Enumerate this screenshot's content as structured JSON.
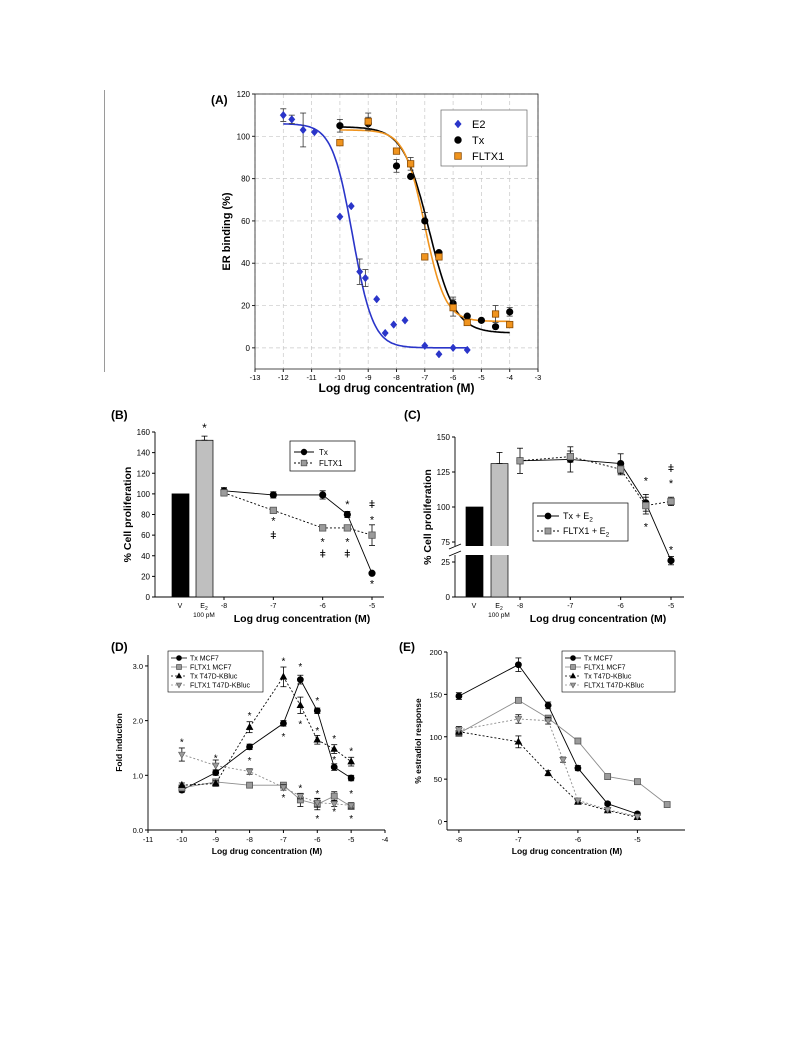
{
  "chart_data": [
    {
      "panel": "(A)",
      "type": "scatter",
      "xlabel": "Log drug concentration (M)",
      "ylabel": "ER binding (%)",
      "xlim": [
        -13,
        -3
      ],
      "ylim": [
        -10,
        120
      ],
      "xticks": [
        -13,
        -12,
        -11,
        -10,
        -9,
        -8,
        -7,
        -6,
        -5,
        -4,
        -3
      ],
      "yticks": [
        0,
        20,
        40,
        60,
        80,
        100,
        120
      ],
      "grid": true,
      "legend_position": "top-right",
      "series": [
        {
          "name": "E2",
          "color": "#2a35c9",
          "marker": "diamond",
          "x": [
            -12,
            -11.7,
            -11.3,
            -10.9,
            -10,
            -9.6,
            -9.3,
            -9.1,
            -8.7,
            -8.4,
            -8.1,
            -7.7,
            -7,
            -6.5,
            -6,
            -5.5
          ],
          "y": [
            110,
            108,
            103,
            102,
            62,
            67,
            36,
            33,
            23,
            7,
            11,
            13,
            1,
            -3,
            0,
            -1
          ],
          "err": [
            3,
            2,
            8,
            0,
            0,
            0,
            6,
            4,
            0,
            0,
            0,
            0,
            0,
            0,
            0,
            0
          ],
          "fit": {
            "top": 106,
            "bottom": 0,
            "logEC50": -9.55,
            "slope": 1.2,
            "from": -12,
            "to": -5.5
          }
        },
        {
          "name": "Tx",
          "color": "#000000",
          "marker": "circle",
          "x": [
            -10,
            -9,
            -8,
            -7.5,
            -7,
            -6.5,
            -6,
            -5.5,
            -5,
            -4.5,
            -4
          ],
          "y": [
            105,
            106,
            86,
            81,
            60,
            45,
            21,
            15,
            13,
            10,
            17
          ],
          "err": [
            3,
            3,
            3,
            0,
            4,
            0,
            3,
            0,
            0,
            0,
            2
          ],
          "fit": {
            "top": 104.5,
            "bottom": 7,
            "logEC50": -6.85,
            "slope": 0.95,
            "from": -10,
            "to": -4
          }
        },
        {
          "name": "FLTX1",
          "color": "#f0941e",
          "marker": "square",
          "x": [
            -10,
            -9,
            -8,
            -7.5,
            -7,
            -6.5,
            -6,
            -5.5,
            -4.5,
            -4
          ],
          "y": [
            97,
            107,
            93,
            87,
            43,
            43,
            19,
            12,
            16,
            11
          ],
          "err": [
            0,
            4,
            0,
            3,
            0,
            0,
            4,
            0,
            4,
            0
          ],
          "fit": {
            "top": 103,
            "bottom": 12.5,
            "logEC50": -7.0,
            "slope": 1.2,
            "from": -10,
            "to": -4
          }
        }
      ]
    },
    {
      "panel": "(B)",
      "type": "bar+line",
      "xlabel": "Log drug concentration (M)",
      "ylabel": "% Cell proliferation",
      "ylim": [
        0,
        160
      ],
      "yticks": [
        0,
        20,
        40,
        60,
        80,
        100,
        120,
        140,
        160
      ],
      "xticks": [
        "-8",
        "-7",
        "-6",
        "-5"
      ],
      "categories": [
        "V",
        "E2"
      ],
      "category_sub": "100 pM",
      "bars": [
        {
          "label": "V",
          "value": 100,
          "color": "#000000"
        },
        {
          "label": "E2",
          "value": 152,
          "color": "#bfbfbf",
          "err": 4,
          "star": "*"
        }
      ],
      "legend_position": "top-right",
      "series": [
        {
          "name": "Tx",
          "marker": "circle",
          "color": "#000000",
          "dash": false,
          "x": [
            -8,
            -7,
            -6,
            -5.5,
            -5
          ],
          "y": [
            103,
            99,
            99,
            80,
            23
          ],
          "err": [
            3,
            3,
            4,
            3,
            0
          ]
        },
        {
          "name": "FLTX1",
          "marker": "square",
          "color": "#8c8c8c",
          "dash": true,
          "x": [
            -8,
            -7,
            -6,
            -5.5,
            -5
          ],
          "y": [
            101,
            84,
            67,
            67,
            60
          ],
          "err": [
            3,
            2,
            3,
            0,
            10
          ]
        }
      ],
      "annotations": [
        {
          "x": -7,
          "y": 74,
          "text": "*"
        },
        {
          "x": -7,
          "y": 60,
          "text": "ǂ"
        },
        {
          "x": -6,
          "y": 54,
          "text": "*"
        },
        {
          "x": -6,
          "y": 42,
          "text": "ǂ"
        },
        {
          "x": -5.5,
          "y": 90,
          "text": "*"
        },
        {
          "x": -5.5,
          "y": 54,
          "text": "*"
        },
        {
          "x": -5.5,
          "y": 42,
          "text": "ǂ"
        },
        {
          "x": -5,
          "y": 90,
          "text": "ǂ"
        },
        {
          "x": -5,
          "y": 75,
          "text": "*"
        },
        {
          "x": -5,
          "y": 13,
          "text": "*"
        }
      ]
    },
    {
      "panel": "(C)",
      "type": "bar+line",
      "xlabel": "Log drug concentration (M)",
      "ylabel": "% Cell proliferation",
      "yticks_upper": [
        75,
        100,
        125,
        150
      ],
      "yticks_lower": [
        0,
        25
      ],
      "broken_axis": true,
      "xticks": [
        "-8",
        "-7",
        "-6",
        "-5"
      ],
      "categories": [
        "V",
        "E2"
      ],
      "category_sub": "100 pM",
      "bars": [
        {
          "label": "V",
          "value": 100,
          "color": "#000000",
          "star": "*"
        },
        {
          "label": "E2",
          "value": 131,
          "color": "#bfbfbf",
          "err": 8
        }
      ],
      "legend_position": "middle-right",
      "series": [
        {
          "name": "Tx + E2",
          "marker": "circle",
          "color": "#000000",
          "dash": false,
          "x": [
            -8,
            -7,
            -6,
            -5.5,
            -5
          ],
          "y": [
            133,
            134,
            131,
            103,
            26
          ],
          "err": [
            9,
            9,
            7,
            6,
            3
          ]
        },
        {
          "name": "FLTX1 + E2",
          "marker": "square",
          "color": "#8c8c8c",
          "dash": true,
          "x": [
            -8,
            -7,
            -6,
            -5.5,
            -5
          ],
          "y": [
            133,
            136,
            127,
            101,
            104
          ],
          "err": [
            0,
            4,
            4,
            6,
            3
          ]
        }
      ],
      "annotations": [
        {
          "x": -5.5,
          "y": 119,
          "text": "*"
        },
        {
          "x": -5.5,
          "y": 86,
          "text": "*"
        },
        {
          "x": -5,
          "y": 128,
          "text": "ǂ"
        },
        {
          "x": -5,
          "y": 117,
          "text": "*"
        },
        {
          "x": -5,
          "y": 34,
          "text": "*"
        }
      ]
    },
    {
      "panel": "(D)",
      "type": "line",
      "xlabel": "Log drug concentration (M)",
      "ylabel": "Fold induction",
      "xlim": [
        -11,
        -4
      ],
      "ylim": [
        0,
        3.2
      ],
      "xticks": [
        -11,
        -10,
        -9,
        -8,
        -7,
        -6,
        -5,
        -4
      ],
      "yticks": [
        0.0,
        1.0,
        2.0,
        3.0
      ],
      "legend_position": "top-left",
      "series": [
        {
          "name": "Tx MCF7",
          "marker": "circle",
          "color": "#000000",
          "dash": false,
          "x": [
            -10,
            -9,
            -8,
            -7,
            -6.5,
            -6,
            -5.5,
            -5
          ],
          "y": [
            0.73,
            1.05,
            1.52,
            1.95,
            2.75,
            2.18,
            1.15,
            0.95
          ],
          "err": [
            0.04,
            0.05,
            0.05,
            0.05,
            0.08,
            0.05,
            0.06,
            0.05
          ]
        },
        {
          "name": "FLTX1 MCF7",
          "marker": "square",
          "color": "#8c8c8c",
          "dash": false,
          "x": [
            -10,
            -9,
            -8,
            -7,
            -6.5,
            -6,
            -5.5,
            -5
          ],
          "y": [
            0.77,
            0.88,
            0.82,
            0.82,
            0.55,
            0.47,
            0.62,
            0.43
          ],
          "err": [
            0.05,
            0.05,
            0.03,
            0.05,
            0.12,
            0.1,
            0.08,
            0.05
          ]
        },
        {
          "name": "Tx T47D-KBluc",
          "marker": "triangle-up",
          "color": "#000000",
          "dash": true,
          "x": [
            -10,
            -9,
            -8,
            -7,
            -6.5,
            -6,
            -5.5,
            -5
          ],
          "y": [
            0.82,
            0.85,
            1.88,
            2.8,
            2.28,
            1.65,
            1.48,
            1.25
          ],
          "err": [
            0.04,
            0.05,
            0.1,
            0.18,
            0.15,
            0.08,
            0.08,
            0.08
          ]
        },
        {
          "name": "FLTX1 T47D-KBluc",
          "marker": "triangle-down",
          "color": "#8c8c8c",
          "dash": true,
          "x": [
            -10,
            -9,
            -8,
            -7,
            -6.5,
            -6,
            -5.5,
            -5
          ],
          "y": [
            1.38,
            1.18,
            1.07,
            0.78,
            0.62,
            0.5,
            0.48,
            0.45
          ],
          "err": [
            0.12,
            0.1,
            0.05,
            0.05,
            0.05,
            0.08,
            0.05,
            0.05
          ]
        }
      ],
      "annotations": [
        {
          "x": -10,
          "y": 1.62,
          "text": "*"
        },
        {
          "x": -9,
          "y": 1.33,
          "text": "*"
        },
        {
          "x": -8,
          "y": 2.1,
          "text": "*"
        },
        {
          "x": -8,
          "y": 1.28,
          "text": "*"
        },
        {
          "x": -7,
          "y": 3.1,
          "text": "*"
        },
        {
          "x": -7,
          "y": 1.72,
          "text": "*"
        },
        {
          "x": -7,
          "y": 0.6,
          "text": "*"
        },
        {
          "x": -6.5,
          "y": 3.0,
          "text": "*"
        },
        {
          "x": -6.5,
          "y": 1.95,
          "text": "*"
        },
        {
          "x": -6.5,
          "y": 0.78,
          "text": "*"
        },
        {
          "x": -6,
          "y": 2.38,
          "text": "*"
        },
        {
          "x": -6,
          "y": 1.83,
          "text": "*"
        },
        {
          "x": -6,
          "y": 0.68,
          "text": "*"
        },
        {
          "x": -6,
          "y": 0.22,
          "text": "*"
        },
        {
          "x": -5.5,
          "y": 1.68,
          "text": "*"
        },
        {
          "x": -5.5,
          "y": 1.3,
          "text": "*"
        },
        {
          "x": -5.5,
          "y": 0.35,
          "text": "*"
        },
        {
          "x": -5,
          "y": 1.45,
          "text": "*"
        },
        {
          "x": -5,
          "y": 0.68,
          "text": "*"
        },
        {
          "x": -5,
          "y": 0.22,
          "text": "*"
        }
      ]
    },
    {
      "panel": "(E)",
      "type": "line",
      "xlabel": "Log drug concentration (M)",
      "ylabel": "% estradiol response",
      "xlim": [
        -8.2,
        -4.2
      ],
      "ylim": [
        -10,
        200
      ],
      "xticks": [
        -8,
        -7,
        -6,
        -5
      ],
      "yticks": [
        0,
        50,
        100,
        150,
        200
      ],
      "legend_position": "top-right",
      "series": [
        {
          "name": "Tx MCF7",
          "marker": "circle",
          "color": "#000000",
          "dash": false,
          "x": [
            -8,
            -7,
            -6.5,
            -6,
            -5.5,
            -5
          ],
          "y": [
            148,
            185,
            137,
            63,
            21,
            9
          ],
          "err": [
            4,
            8,
            4,
            3,
            2,
            2
          ]
        },
        {
          "name": "FLTX1 MCF7",
          "marker": "square",
          "color": "#8c8c8c",
          "dash": false,
          "x": [
            -8,
            -7,
            -6.5,
            -6,
            -5.5,
            -5,
            -4.5
          ],
          "y": [
            104,
            143,
            122,
            95,
            53,
            47,
            20
          ],
          "err": [
            3,
            3,
            3,
            3,
            2,
            2,
            2
          ]
        },
        {
          "name": "Tx T47D-KBluc",
          "marker": "triangle-up",
          "color": "#000000",
          "dash": true,
          "x": [
            -8,
            -7,
            -6.5,
            -6,
            -5.5,
            -5
          ],
          "y": [
            106,
            94,
            57,
            23,
            13,
            5
          ],
          "err": [
            4,
            7,
            3,
            2,
            2,
            2
          ]
        },
        {
          "name": "FLTX1 T47D-KBluc",
          "marker": "triangle-down",
          "color": "#8c8c8c",
          "dash": true,
          "x": [
            -8,
            -7,
            -6.5,
            -6.25,
            -6,
            -5.5,
            -5
          ],
          "y": [
            108,
            121,
            119,
            73,
            25,
            14,
            6
          ],
          "err": [
            4,
            5,
            4,
            3,
            2,
            2,
            2
          ]
        }
      ]
    }
  ]
}
